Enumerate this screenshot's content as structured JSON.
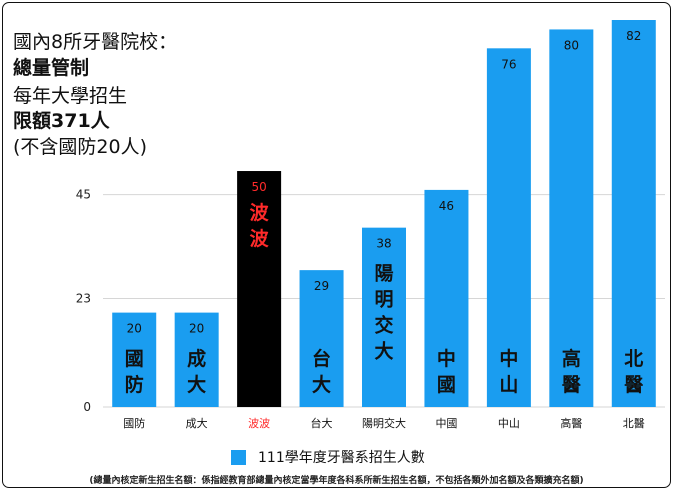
{
  "intro": {
    "line1": "國內8所牙醫院校：",
    "line2": "總量管制",
    "line3": "每年大學招生",
    "line4": "限額371人",
    "line5": "(不含國防20人)"
  },
  "colors": {
    "bar": "#1a9df0",
    "highlight_bar": "#000000",
    "highlight_text": "#ff2a2a"
  },
  "chart_data": {
    "type": "bar",
    "categories": [
      "國防",
      "成大",
      "波波",
      "台大",
      "陽明交大",
      "中國",
      "中山",
      "高醫",
      "北醫"
    ],
    "series": [
      {
        "name": "111學年度牙醫系招生人數",
        "values": [
          20,
          20,
          50,
          29,
          38,
          46,
          76,
          80,
          82
        ]
      }
    ],
    "bar_vertical_labels": [
      "國防",
      "成大",
      "波波",
      "台大",
      "陽明交大",
      "中國",
      "中山",
      "高醫",
      "北醫"
    ],
    "highlight_index": 2,
    "yticks": [
      0,
      23,
      45
    ],
    "ylim": [
      0,
      82
    ],
    "grid": true,
    "legend_position": "bottom"
  },
  "footnote": "(總量內核定新生招生名額：係指經教育部總量內核定當學年度各科系所新生招生名額，不包括各類外加名額及各類擴充名額)"
}
